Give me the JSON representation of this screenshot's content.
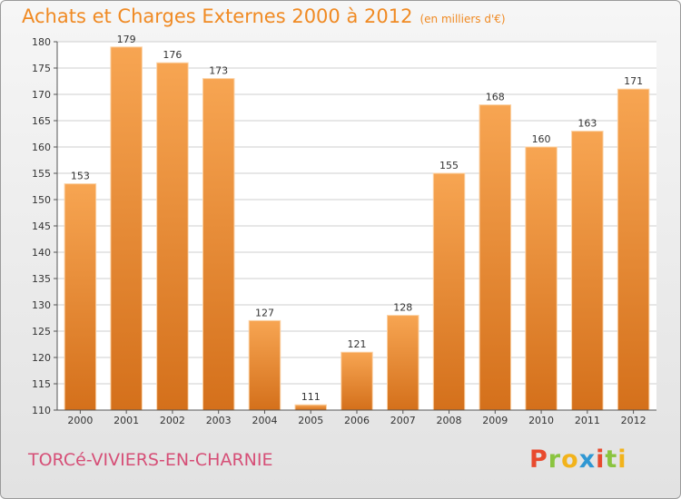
{
  "header": {
    "title": "Achats et Charges Externes 2000 à 2012",
    "unit": "(en milliers d'€)"
  },
  "footer": {
    "commune": "TORCé-VIVIERS-EN-CHARNIE",
    "logo_letters": [
      "P",
      "r",
      "o",
      "x",
      "i",
      "t",
      "i"
    ],
    "logo_colors": [
      "#e84a2e",
      "#8ac43f",
      "#f2b31b",
      "#2f97d3",
      "#e84a2e",
      "#8ac43f",
      "#f2b31b"
    ]
  },
  "colors": {
    "title": "#f08a23",
    "bar_top": "#f7a552",
    "bar_bottom": "#d4701b",
    "commune": "#d64f77",
    "grid": "#cfcfcf"
  },
  "chart_data": {
    "type": "bar",
    "title": "Achats et Charges Externes 2000 à 2012",
    "categories": [
      "2000",
      "2001",
      "2002",
      "2003",
      "2004",
      "2005",
      "2006",
      "2007",
      "2008",
      "2009",
      "2010",
      "2011",
      "2012"
    ],
    "values": [
      153,
      179,
      176,
      173,
      127,
      111,
      121,
      128,
      155,
      168,
      160,
      163,
      171
    ],
    "ylim": [
      110,
      180
    ],
    "yticks": [
      110,
      115,
      120,
      125,
      130,
      135,
      140,
      145,
      150,
      155,
      160,
      165,
      170,
      175,
      180
    ],
    "grid": true,
    "xlabel": "",
    "ylabel": ""
  }
}
